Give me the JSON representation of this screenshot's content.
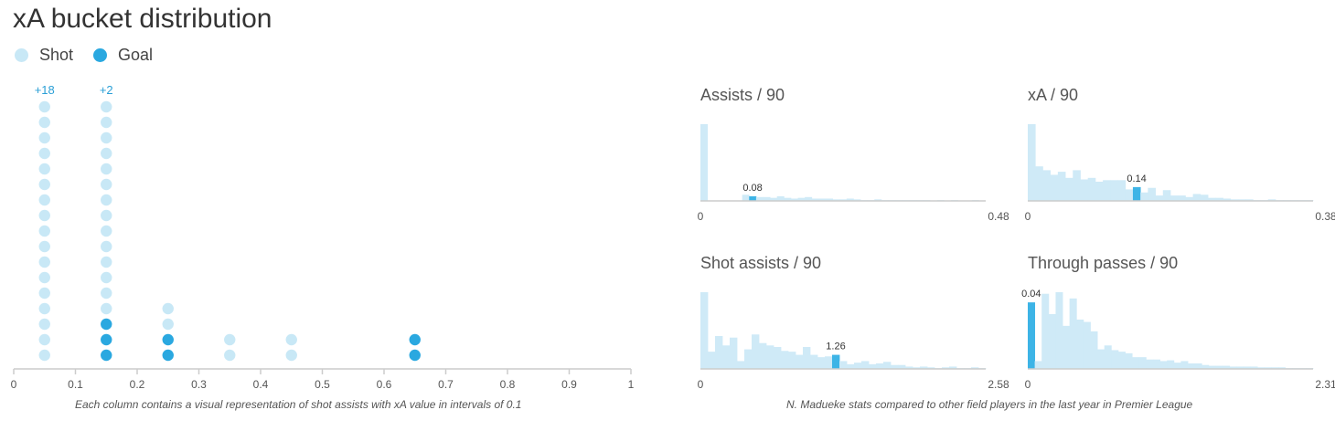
{
  "title": "xA bucket distribution",
  "legend": {
    "shot_label": "Shot",
    "goal_label": "Goal"
  },
  "colors": {
    "shot": "#c8e8f6",
    "goal": "#2aa8e0",
    "accent_text": "#2a9fd6",
    "axis": "#cccccc",
    "hist": "#cfeaf7",
    "hist_highlight": "#3db4e6"
  },
  "chart_data": [
    {
      "type": "scatter",
      "title": "xA bucket distribution",
      "x_ticks": [
        "0",
        "0.1",
        "0.2",
        "0.3",
        "0.4",
        "0.5",
        "0.6",
        "0.7",
        "0.8",
        "0.9",
        "1"
      ],
      "xlim": [
        0,
        1
      ],
      "columns": [
        {
          "x": 0.05,
          "shots": 17,
          "goals": 0,
          "overflow": "+18"
        },
        {
          "x": 0.15,
          "shots": 14,
          "goals": 3,
          "overflow": "+2"
        },
        {
          "x": 0.25,
          "shots": 2,
          "goals": 2,
          "overflow": ""
        },
        {
          "x": 0.35,
          "shots": 2,
          "goals": 0,
          "overflow": ""
        },
        {
          "x": 0.45,
          "shots": 2,
          "goals": 0,
          "overflow": ""
        },
        {
          "x": 0.65,
          "shots": 0,
          "goals": 2,
          "overflow": ""
        }
      ],
      "grid": false,
      "legend_position": "top-left"
    },
    {
      "type": "bar",
      "title": "Assists / 90",
      "min_label": "0",
      "max_label": "0.48",
      "value_label": "0.08",
      "highlight_index": 7,
      "values": [
        100,
        0,
        0,
        0,
        0,
        0,
        8,
        6,
        5,
        5,
        4,
        6,
        4,
        3,
        4,
        5,
        3,
        3,
        3,
        2,
        2,
        3,
        2,
        1,
        1,
        2,
        1,
        1,
        1,
        1,
        1,
        1,
        1,
        0,
        1,
        0,
        1,
        0,
        0,
        1,
        0
      ]
    },
    {
      "type": "bar",
      "title": "xA / 90",
      "min_label": "0",
      "max_label": "0.38",
      "value_label": "0.14",
      "highlight_index": 14,
      "values": [
        100,
        45,
        40,
        34,
        38,
        30,
        40,
        28,
        30,
        25,
        27,
        27,
        27,
        15,
        18,
        11,
        17,
        7,
        14,
        7,
        7,
        5,
        9,
        8,
        4,
        4,
        3,
        2,
        2,
        2,
        1,
        1,
        2,
        1,
        1,
        1,
        1,
        1
      ]
    },
    {
      "type": "bar",
      "title": "Shot assists / 90",
      "min_label": "0",
      "max_label": "2.58",
      "value_label": "1.26",
      "highlight_index": 18,
      "values": [
        98,
        22,
        42,
        30,
        40,
        10,
        25,
        44,
        33,
        30,
        28,
        23,
        22,
        18,
        28,
        18,
        15,
        16,
        18,
        10,
        6,
        8,
        10,
        6,
        7,
        9,
        5,
        5,
        3,
        2,
        3,
        2,
        1,
        2,
        3,
        1,
        1,
        2,
        1
      ]
    },
    {
      "type": "bar",
      "title": "Through passes / 90",
      "min_label": "0",
      "max_label": "2.31",
      "value_label": "0.04",
      "highlight_index": 0,
      "values": [
        85,
        10,
        96,
        70,
        98,
        55,
        90,
        63,
        60,
        48,
        25,
        30,
        24,
        22,
        20,
        15,
        15,
        12,
        12,
        10,
        11,
        8,
        10,
        7,
        7,
        5,
        4,
        4,
        4,
        3,
        3,
        3,
        3,
        2,
        2,
        2,
        2,
        1,
        1,
        1,
        1
      ]
    }
  ],
  "notes": {
    "left": "Each column contains a visual representation of shot assists with xA value in intervals of 0.1",
    "right": "N. Madueke stats compared to other field players in the last year in Premier League"
  }
}
